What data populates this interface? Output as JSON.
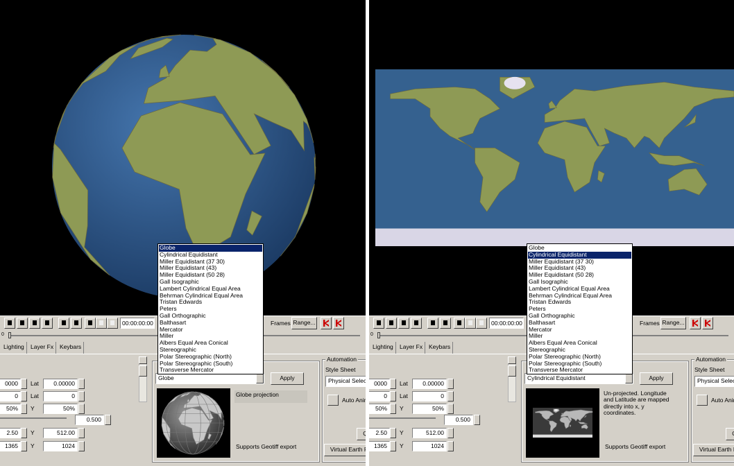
{
  "projections": [
    "Globe",
    "Cylindrical Equidistant",
    "Miller Equidistant (37 30)",
    "Miller Equidistant (43)",
    "Miller Equidistant (50 28)",
    "Gall Isographic",
    "Lambert Cylindrical Equal Area",
    "Behrman Cylindrical Equal Area",
    "Tristan Edwards",
    "Peters",
    "Gall Orthographic",
    "Balthasart",
    "Mercator",
    "Miller",
    "Albers Equal Area Conical",
    "Stereographic",
    "Polar Stereographic (North)",
    "Polar Stereographic (South)",
    "Transverse Mercator"
  ],
  "controls": {
    "time": "00:00:00:00",
    "frames": "Frames",
    "range": "Range...",
    "slider_start": "0",
    "tabs": [
      "Lighting",
      "Layer Fx",
      "Keybars"
    ],
    "rows": [
      [
        "0000",
        "Lat",
        "0.00000"
      ],
      [
        "0",
        "Lat",
        "0"
      ],
      [
        "50%",
        "Y",
        "50%"
      ],
      [
        "2.50",
        "Y",
        "512.00"
      ],
      [
        "1365",
        "Y",
        "1024"
      ]
    ],
    "scale_value": "0.500",
    "apply": "Apply",
    "geotiff": "Supports Geotiff export",
    "automation": "Automation",
    "style_sheet": "Style Sheet",
    "style_value": "Physical Selectio",
    "auto_anim": "Auto Anim",
    "small_button": "Q",
    "virtual_earth": "Virtual Earth F"
  },
  "panels": [
    {
      "selected": "Globe",
      "description": "Globe projection"
    },
    {
      "selected": "Cylindrical Equidistant",
      "description": "Un-projected. Longitude and Latitude are mapped directly into x, y coordinates."
    }
  ]
}
